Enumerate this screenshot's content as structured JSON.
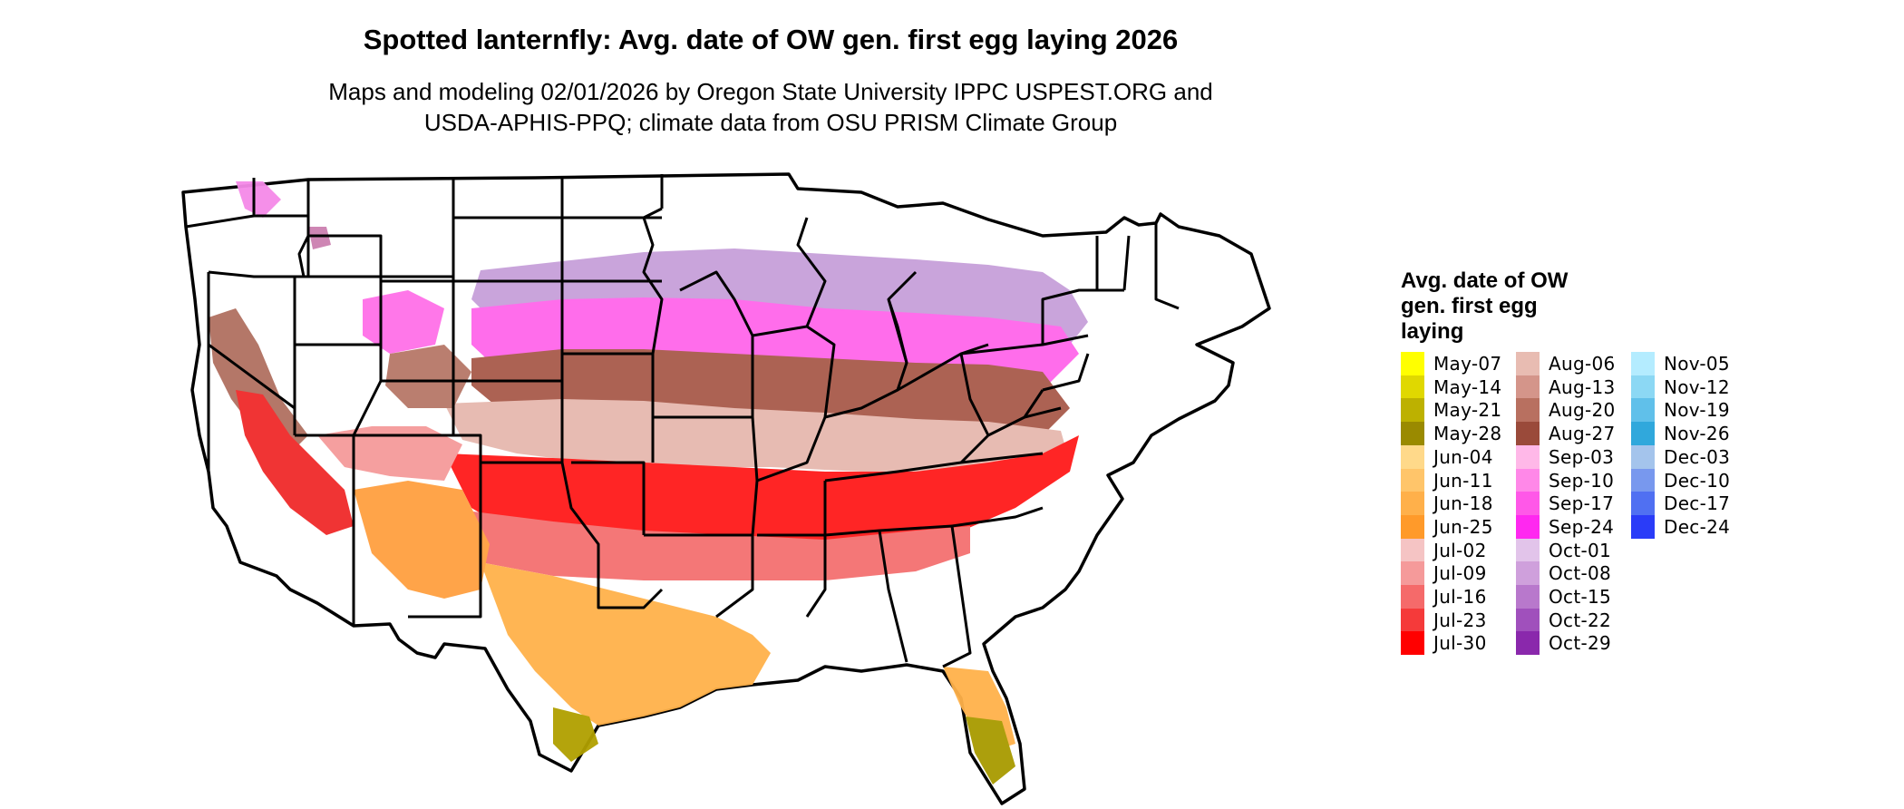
{
  "title": "Spotted lanternfly: Avg. date of OW gen. first egg laying 2026",
  "subtitle": [
    "Maps and modeling 02/01/2026 by Oregon State University IPPC USPEST.ORG and",
    "USDA-APHIS-PPQ; climate data from OSU PRISM Climate Group"
  ],
  "legend": {
    "title": [
      "Avg. date of OW",
      "gen. first egg",
      "laying"
    ],
    "items": [
      {
        "label": "May-07",
        "color": "#ffff00"
      },
      {
        "label": "May-14",
        "color": "#e0d800"
      },
      {
        "label": "May-21",
        "color": "#bdb100"
      },
      {
        "label": "May-28",
        "color": "#9a8a00"
      },
      {
        "label": "Jun-04",
        "color": "#ffd98a"
      },
      {
        "label": "Jun-11",
        "color": "#ffc56a"
      },
      {
        "label": "Jun-18",
        "color": "#ffb04a"
      },
      {
        "label": "Jun-25",
        "color": "#ff9a2a"
      },
      {
        "label": "Jul-02",
        "color": "#f5c4c4"
      },
      {
        "label": "Jul-09",
        "color": "#f59a9a"
      },
      {
        "label": "Jul-16",
        "color": "#f56a6a"
      },
      {
        "label": "Jul-23",
        "color": "#f53a3a"
      },
      {
        "label": "Jul-30",
        "color": "#ff0000"
      },
      {
        "label": "Aug-06",
        "color": "#e8bcb2"
      },
      {
        "label": "Aug-13",
        "color": "#d4958a"
      },
      {
        "label": "Aug-20",
        "color": "#b87060"
      },
      {
        "label": "Aug-27",
        "color": "#9a4a3a"
      },
      {
        "label": "Sep-03",
        "color": "#ffb8e8"
      },
      {
        "label": "Sep-10",
        "color": "#ff88e8"
      },
      {
        "label": "Sep-17",
        "color": "#ff58e8"
      },
      {
        "label": "Sep-24",
        "color": "#ff28f0"
      },
      {
        "label": "Oct-01",
        "color": "#e2c4ea"
      },
      {
        "label": "Oct-08",
        "color": "#cfa0dc"
      },
      {
        "label": "Oct-15",
        "color": "#b878cc"
      },
      {
        "label": "Oct-22",
        "color": "#a050bc"
      },
      {
        "label": "Oct-29",
        "color": "#8a28ac"
      },
      {
        "label": "Nov-05",
        "color": "#b4ecff"
      },
      {
        "label": "Nov-12",
        "color": "#8cd8f4"
      },
      {
        "label": "Nov-19",
        "color": "#60c0ea"
      },
      {
        "label": "Nov-26",
        "color": "#30a8dc"
      },
      {
        "label": "Dec-03",
        "color": "#a4c4ec"
      },
      {
        "label": "Dec-10",
        "color": "#7898ee"
      },
      {
        "label": "Dec-17",
        "color": "#5070f2"
      },
      {
        "label": "Dec-24",
        "color": "#2a3cf8"
      }
    ]
  }
}
